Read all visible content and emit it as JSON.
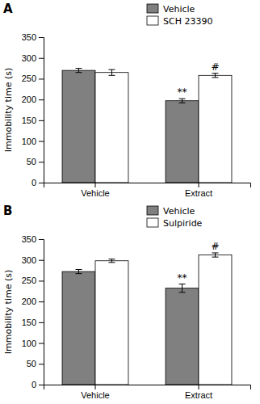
{
  "chart_data": [
    {
      "type": "bar",
      "title": "A",
      "categories": [
        "Vehicle",
        "Extract"
      ],
      "series": [
        {
          "name": "Vehicle",
          "color": "#808080",
          "values": [
            270,
            197
          ],
          "errors": [
            5,
            5
          ]
        },
        {
          "name": "SCH 23390",
          "color": "#ffffff",
          "values": [
            265,
            258
          ],
          "errors": [
            7,
            5
          ]
        }
      ],
      "ylabel": "Immobility time (s)",
      "ylim": [
        0,
        350
      ],
      "yticks": [
        0,
        50,
        100,
        150,
        200,
        250,
        300,
        350
      ],
      "annotations": [
        {
          "text": "**",
          "category": "Extract",
          "series": "Vehicle"
        },
        {
          "text": "#",
          "category": "Extract",
          "series": "SCH 23390"
        }
      ],
      "legend": "top",
      "grid": false
    },
    {
      "type": "bar",
      "title": "B",
      "categories": [
        "Vehicle",
        "Extract"
      ],
      "series": [
        {
          "name": "Vehicle",
          "color": "#808080",
          "values": [
            272,
            232
          ],
          "errors": [
            5,
            10
          ]
        },
        {
          "name": "Sulpiride",
          "color": "#ffffff",
          "values": [
            298,
            312
          ],
          "errors": [
            4,
            5
          ]
        }
      ],
      "ylabel": "Immobility time (s)",
      "ylim": [
        0,
        350
      ],
      "yticks": [
        0,
        50,
        100,
        150,
        200,
        250,
        300,
        350
      ],
      "annotations": [
        {
          "text": "**",
          "category": "Extract",
          "series": "Vehicle"
        },
        {
          "text": "#",
          "category": "Extract",
          "series": "Sulpiride"
        }
      ],
      "legend": "top",
      "grid": false
    }
  ]
}
